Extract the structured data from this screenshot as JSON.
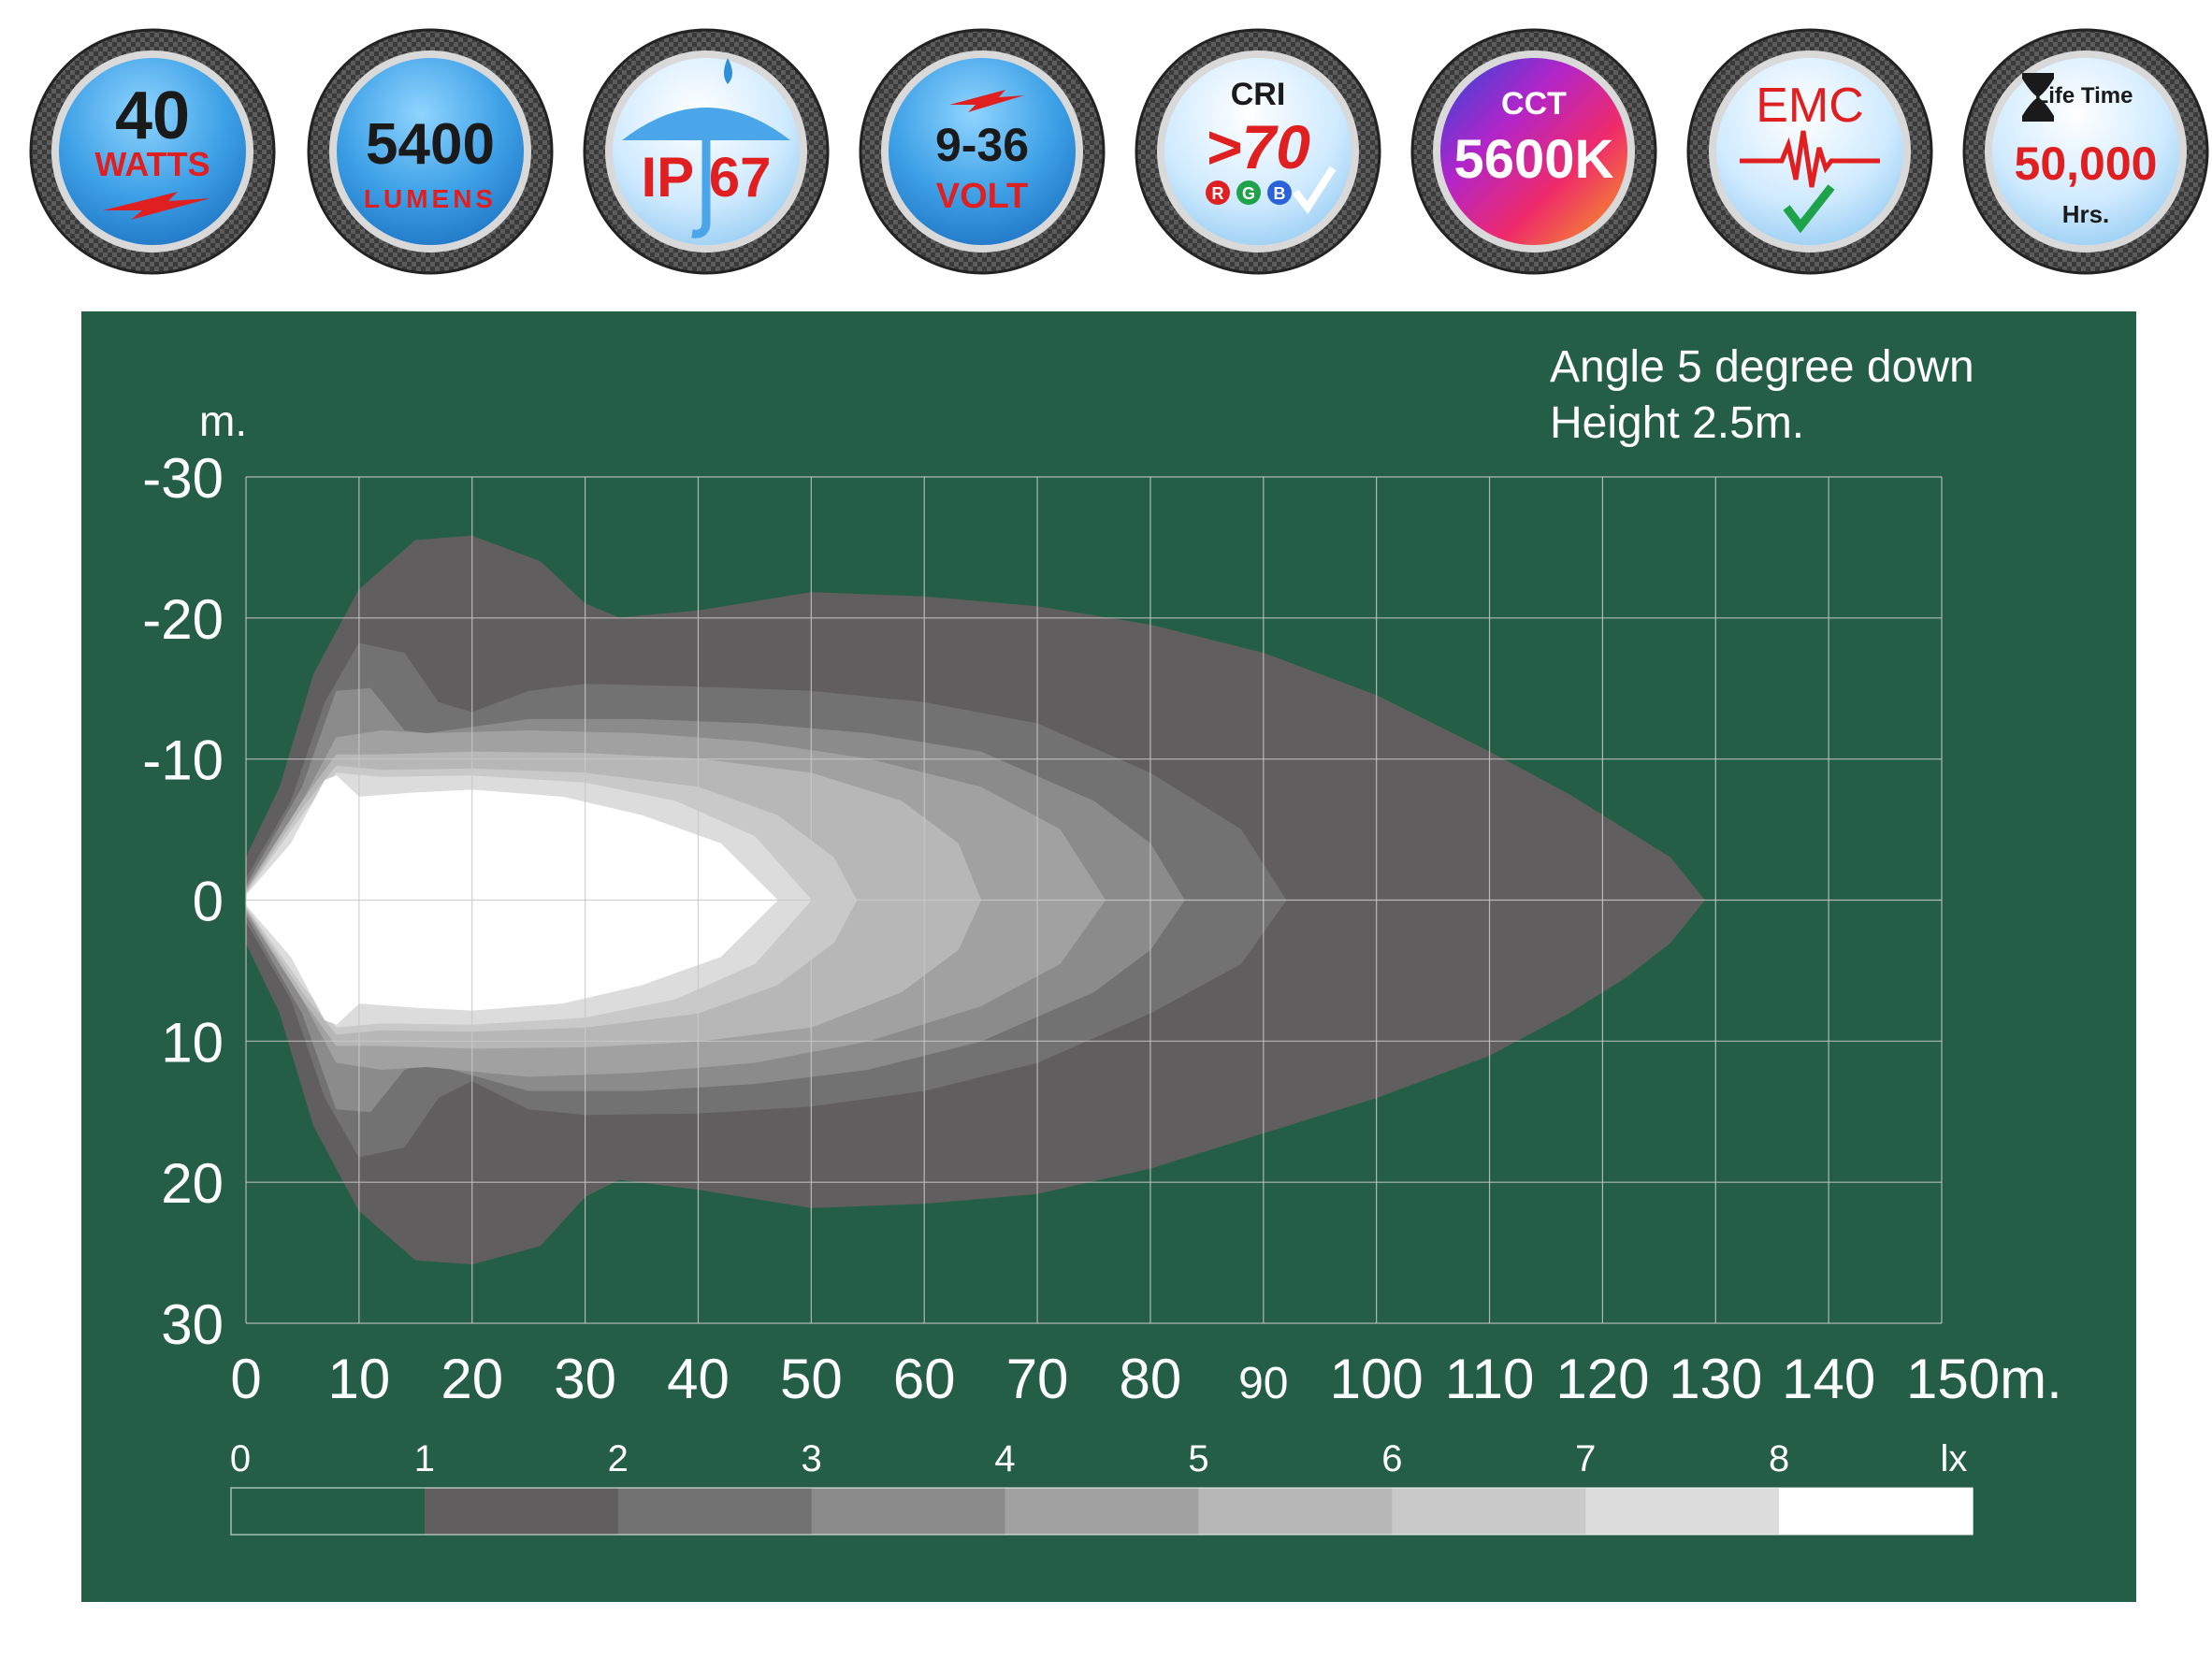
{
  "badges": [
    {
      "id": "watts",
      "value": "40",
      "unit": "WATTS",
      "icon": "lightning-bolt-icon"
    },
    {
      "id": "lumens",
      "value": "5400",
      "unit": "LUMENS"
    },
    {
      "id": "ip",
      "value": "IP 67",
      "icon": "umbrella-raindrop-icon"
    },
    {
      "id": "volt",
      "value": "9-36",
      "unit": "VOLT",
      "icon": "lightning-bolt-icon"
    },
    {
      "id": "cri",
      "title": "CRI",
      "value": ">70",
      "sub": [
        "R",
        "G",
        "B"
      ],
      "icon": "checkmark-icon"
    },
    {
      "id": "cct",
      "title": "CCT",
      "value": "5600K"
    },
    {
      "id": "emc",
      "title": "EMC",
      "icon": "waveform-check-icon"
    },
    {
      "id": "life",
      "title": "Life Time",
      "value": "50,000",
      "unit": "Hrs.",
      "icon": "hourglass-icon"
    }
  ],
  "notes": {
    "angle": "Angle 5 degree down",
    "height": "Height 2.5m."
  },
  "chart_data": {
    "type": "heatmap",
    "description_kind": "isolux contour plot",
    "y_unit_label": "m.",
    "x_ticks": [
      "0",
      "10",
      "20",
      "30",
      "40",
      "50",
      "60",
      "70",
      "80",
      "90",
      "100",
      "110",
      "120",
      "130",
      "140",
      "150m."
    ],
    "y_ticks": [
      "-30",
      "-20",
      "-10",
      "0",
      "10",
      "20",
      "30"
    ],
    "xlim": [
      0,
      150
    ],
    "ylim": [
      -30,
      30
    ],
    "grid": true,
    "legend": {
      "labels": [
        "0",
        "1",
        "2",
        "3",
        "4",
        "5",
        "6",
        "7",
        "8",
        "lx"
      ],
      "colors": [
        "#245e47",
        "#605e5f",
        "#737273",
        "#8b8b8b",
        "#a1a1a1",
        "#b7b7b7",
        "#c9c9c9",
        "#dcdcdc",
        "#ffffff"
      ]
    },
    "contours": [
      {
        "lx": 1,
        "color": "#605e5f",
        "reach": 129,
        "upper": [
          [
            0,
            -3
          ],
          [
            3,
            -8
          ],
          [
            6,
            -16
          ],
          [
            10,
            -22
          ],
          [
            15,
            -25.5
          ],
          [
            20,
            -25.8
          ],
          [
            26,
            -24
          ],
          [
            30,
            -21
          ],
          [
            33,
            -20
          ],
          [
            40,
            -20.5
          ],
          [
            50,
            -21.8
          ],
          [
            60,
            -21.5
          ],
          [
            70,
            -20.8
          ],
          [
            80,
            -19.5
          ],
          [
            90,
            -17.5
          ],
          [
            100,
            -14.5
          ],
          [
            110,
            -10.5
          ],
          [
            117,
            -7.5
          ],
          [
            122,
            -5
          ],
          [
            126,
            -3
          ],
          [
            129,
            0
          ]
        ],
        "lower": [
          [
            0,
            3
          ],
          [
            3,
            8
          ],
          [
            6,
            16
          ],
          [
            10,
            22
          ],
          [
            15,
            25.5
          ],
          [
            20,
            25.8
          ],
          [
            26,
            24.5
          ],
          [
            30,
            21
          ],
          [
            33,
            19.8
          ],
          [
            40,
            20.5
          ],
          [
            50,
            21.8
          ],
          [
            60,
            21.5
          ],
          [
            70,
            20.8
          ],
          [
            80,
            19
          ],
          [
            90,
            16.5
          ],
          [
            100,
            14
          ],
          [
            110,
            11
          ],
          [
            117,
            8
          ],
          [
            122,
            5.5
          ],
          [
            126,
            3
          ],
          [
            129,
            0
          ]
        ]
      },
      {
        "lx": 2,
        "color": "#737273",
        "reach": 92,
        "upper": [
          [
            0,
            -1.5
          ],
          [
            4,
            -7
          ],
          [
            7,
            -14
          ],
          [
            10,
            -18.2
          ],
          [
            14,
            -17.5
          ],
          [
            17,
            -14
          ],
          [
            20,
            -13.3
          ],
          [
            25,
            -14.8
          ],
          [
            30,
            -15.3
          ],
          [
            40,
            -15.1
          ],
          [
            50,
            -14.8
          ],
          [
            60,
            -14
          ],
          [
            70,
            -12.5
          ],
          [
            80,
            -9
          ],
          [
            88,
            -5
          ],
          [
            92,
            0
          ]
        ],
        "lower": [
          [
            0,
            1.5
          ],
          [
            4,
            7
          ],
          [
            7,
            14
          ],
          [
            10,
            18.2
          ],
          [
            14,
            17.5
          ],
          [
            17,
            14
          ],
          [
            20,
            12.8
          ],
          [
            25,
            14.8
          ],
          [
            30,
            15.2
          ],
          [
            40,
            15.1
          ],
          [
            50,
            14.6
          ],
          [
            60,
            13.5
          ],
          [
            70,
            11.5
          ],
          [
            80,
            8
          ],
          [
            88,
            4.5
          ],
          [
            92,
            0
          ]
        ]
      },
      {
        "lx": 3,
        "color": "#8b8b8b",
        "reach": 83,
        "upper": [
          [
            0,
            -1
          ],
          [
            5,
            -8
          ],
          [
            8,
            -14.8
          ],
          [
            11,
            -15
          ],
          [
            14,
            -12
          ],
          [
            16,
            -11.8
          ],
          [
            25,
            -12.8
          ],
          [
            35,
            -12.8
          ],
          [
            45,
            -12.5
          ],
          [
            55,
            -11.8
          ],
          [
            65,
            -10.5
          ],
          [
            75,
            -7
          ],
          [
            80,
            -4
          ],
          [
            83,
            0
          ]
        ],
        "lower": [
          [
            0,
            1
          ],
          [
            5,
            8
          ],
          [
            8,
            14.8
          ],
          [
            11,
            15
          ],
          [
            14,
            12
          ],
          [
            16,
            11.5
          ],
          [
            25,
            13.5
          ],
          [
            35,
            13.5
          ],
          [
            45,
            13
          ],
          [
            55,
            12
          ],
          [
            65,
            10
          ],
          [
            75,
            6.5
          ],
          [
            80,
            3.5
          ],
          [
            83,
            0
          ]
        ]
      },
      {
        "lx": 4,
        "color": "#a1a1a1",
        "reach": 76,
        "upper": [
          [
            0,
            -0.8
          ],
          [
            5,
            -7
          ],
          [
            8,
            -11.5
          ],
          [
            12,
            -12
          ],
          [
            16,
            -11.8
          ],
          [
            25,
            -12
          ],
          [
            35,
            -11.8
          ],
          [
            45,
            -11.2
          ],
          [
            55,
            -10
          ],
          [
            65,
            -8
          ],
          [
            72,
            -5
          ],
          [
            76,
            0
          ]
        ],
        "lower": [
          [
            0,
            0.8
          ],
          [
            5,
            7
          ],
          [
            8,
            11.5
          ],
          [
            12,
            12
          ],
          [
            16,
            11.8
          ],
          [
            25,
            12.5
          ],
          [
            35,
            12.2
          ],
          [
            45,
            11.5
          ],
          [
            55,
            10
          ],
          [
            65,
            7.5
          ],
          [
            72,
            4.5
          ],
          [
            76,
            0
          ]
        ]
      },
      {
        "lx": 5,
        "color": "#b7b7b7",
        "reach": 65,
        "upper": [
          [
            0,
            -0.6
          ],
          [
            5,
            -7
          ],
          [
            8,
            -10.3
          ],
          [
            12,
            -10.3
          ],
          [
            20,
            -10.5
          ],
          [
            30,
            -10.4
          ],
          [
            40,
            -10
          ],
          [
            50,
            -9
          ],
          [
            58,
            -7
          ],
          [
            63,
            -4
          ],
          [
            65,
            0
          ]
        ],
        "lower": [
          [
            0,
            0.6
          ],
          [
            5,
            7
          ],
          [
            8,
            10.3
          ],
          [
            12,
            10.3
          ],
          [
            20,
            10.5
          ],
          [
            30,
            10.4
          ],
          [
            40,
            10
          ],
          [
            50,
            9
          ],
          [
            58,
            6.5
          ],
          [
            63,
            3.5
          ],
          [
            65,
            0
          ]
        ]
      },
      {
        "lx": 6,
        "color": "#c9c9c9",
        "reach": 54,
        "upper": [
          [
            0,
            -0.5
          ],
          [
            5,
            -6.5
          ],
          [
            8,
            -9.5
          ],
          [
            12,
            -9.2
          ],
          [
            20,
            -9.3
          ],
          [
            30,
            -9
          ],
          [
            40,
            -8
          ],
          [
            47,
            -6
          ],
          [
            52,
            -3
          ],
          [
            54,
            0
          ]
        ],
        "lower": [
          [
            0,
            0.5
          ],
          [
            5,
            6.5
          ],
          [
            8,
            9.5
          ],
          [
            12,
            9.2
          ],
          [
            20,
            9.3
          ],
          [
            30,
            9
          ],
          [
            40,
            8
          ],
          [
            47,
            6
          ],
          [
            52,
            3
          ],
          [
            54,
            0
          ]
        ]
      },
      {
        "lx": 7,
        "color": "#dcdcdc",
        "reach": 50,
        "upper": [
          [
            0,
            -0.4
          ],
          [
            5,
            -6
          ],
          [
            8,
            -9
          ],
          [
            12,
            -8.7
          ],
          [
            20,
            -8.8
          ],
          [
            30,
            -8.3
          ],
          [
            38,
            -7
          ],
          [
            45,
            -4.5
          ],
          [
            50,
            0
          ]
        ],
        "lower": [
          [
            0,
            0.4
          ],
          [
            5,
            6
          ],
          [
            8,
            9
          ],
          [
            12,
            8.7
          ],
          [
            20,
            8.8
          ],
          [
            30,
            8.3
          ],
          [
            38,
            7
          ],
          [
            45,
            4.5
          ],
          [
            50,
            0
          ]
        ]
      },
      {
        "lx": 8,
        "color": "#ffffff",
        "reach": 47,
        "upper": [
          [
            0,
            -0.3
          ],
          [
            4,
            -4
          ],
          [
            7,
            -8.5
          ],
          [
            8,
            -8.8
          ],
          [
            10,
            -7.3
          ],
          [
            15,
            -7.6
          ],
          [
            20,
            -7.8
          ],
          [
            28,
            -7.3
          ],
          [
            35,
            -6
          ],
          [
            42,
            -4
          ],
          [
            47,
            0
          ]
        ],
        "lower": [
          [
            0,
            0.3
          ],
          [
            4,
            4
          ],
          [
            7,
            8.5
          ],
          [
            8,
            8.8
          ],
          [
            10,
            7.3
          ],
          [
            15,
            7.6
          ],
          [
            20,
            7.8
          ],
          [
            28,
            7.3
          ],
          [
            35,
            6
          ],
          [
            42,
            4
          ],
          [
            47,
            0
          ]
        ]
      }
    ]
  }
}
